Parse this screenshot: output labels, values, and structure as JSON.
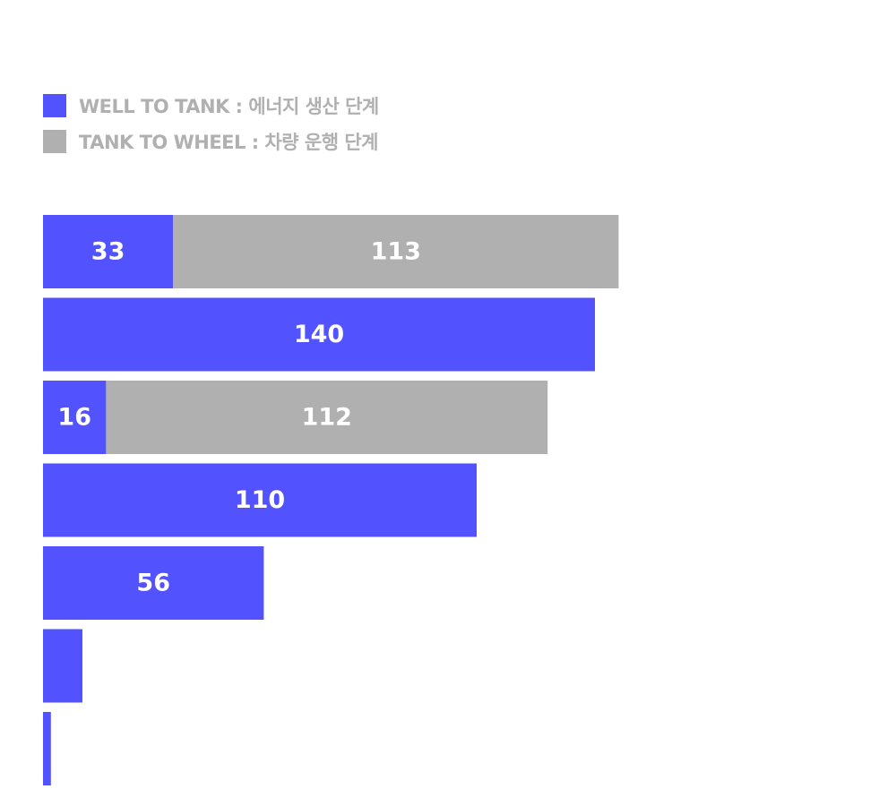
{
  "chart_data": {
    "type": "bar",
    "orientation": "horizontal",
    "stacked": true,
    "categories": [
      "",
      "",
      "",
      "",
      "",
      "",
      ""
    ],
    "series": [
      {
        "name": "WELL TO TANK : 에너지 생산 단계",
        "color": "#5252ff",
        "values": [
          33,
          140,
          16,
          110,
          56,
          10,
          2
        ]
      },
      {
        "name": "TANK TO WHEEL : 차량 운행 단계",
        "color": "#b0b0b0",
        "values": [
          113,
          0,
          112,
          0,
          0,
          0,
          0
        ]
      }
    ],
    "value_labels": [
      [
        "33",
        "113"
      ],
      [
        "140",
        ""
      ],
      [
        "16",
        "112"
      ],
      [
        "110",
        ""
      ],
      [
        "56",
        ""
      ],
      [
        "",
        ""
      ],
      [
        "",
        ""
      ]
    ],
    "legend_position": "top-left",
    "grid": false
  }
}
